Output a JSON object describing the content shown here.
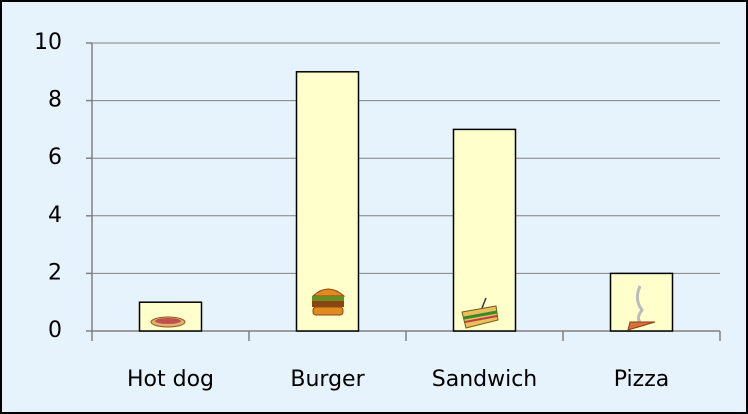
{
  "chart_data": {
    "type": "bar",
    "categories": [
      "Hot dog",
      "Burger",
      "Sandwich",
      "Pizza"
    ],
    "values": [
      1,
      9,
      7,
      2
    ],
    "color": "#ffffcc",
    "ylim": [
      0,
      10
    ],
    "yticks": [
      0,
      2,
      4,
      6,
      8,
      10
    ],
    "grid": true
  }
}
